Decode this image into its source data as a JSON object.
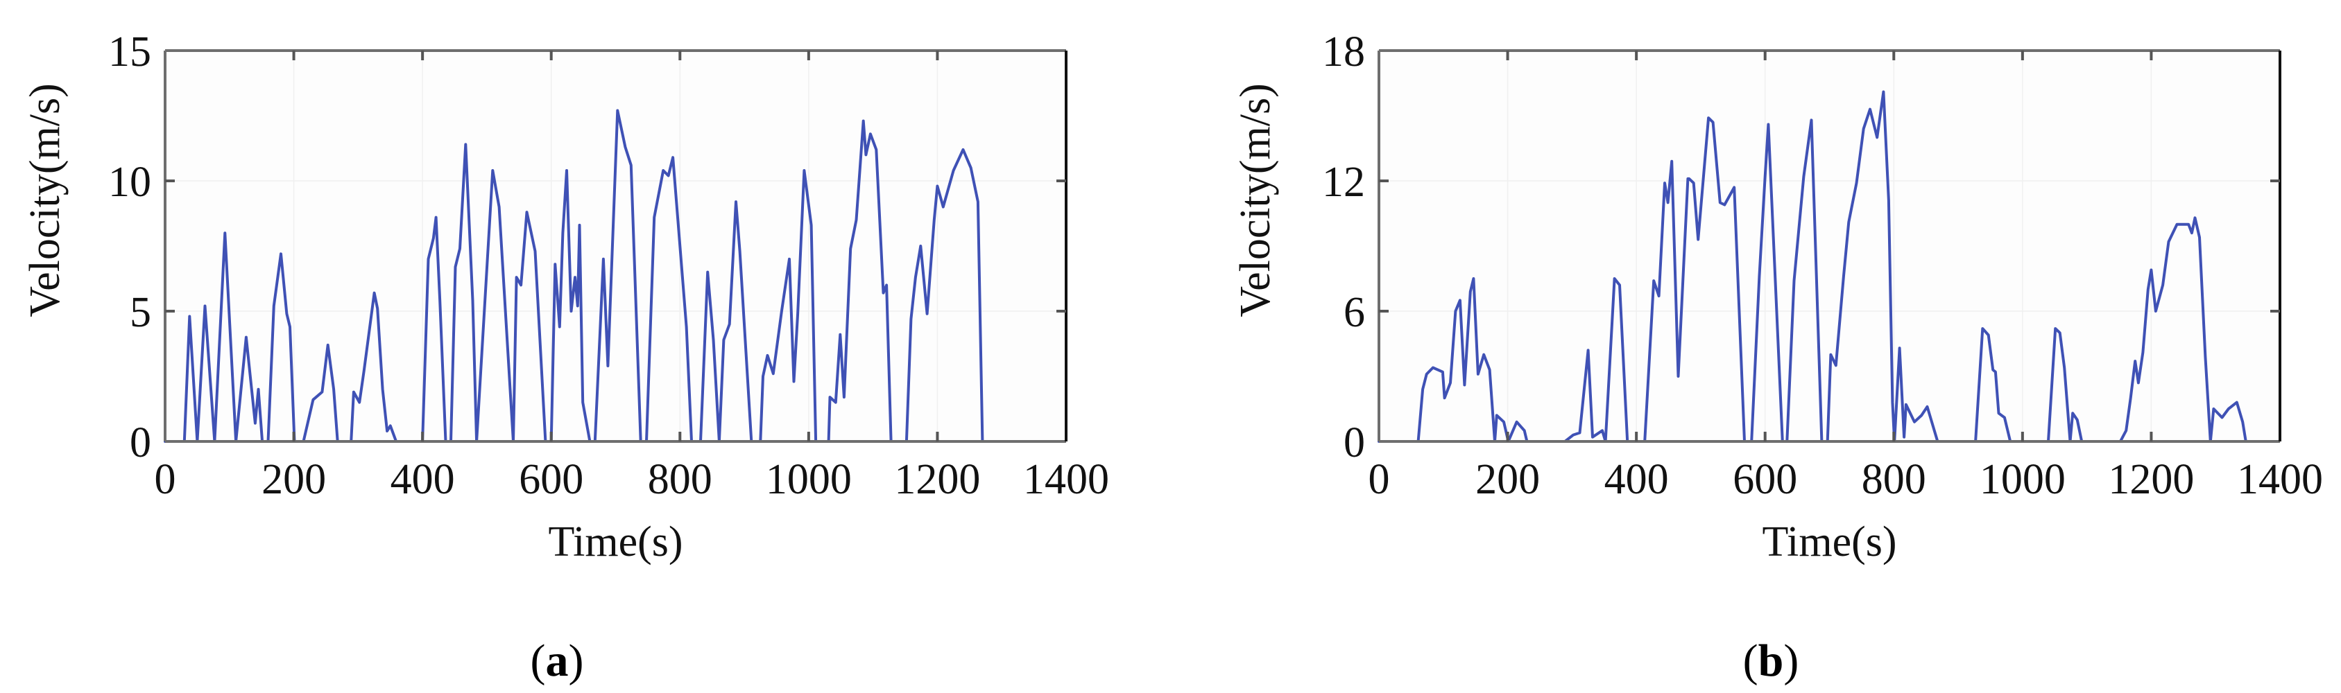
{
  "figure": {
    "line_color": "#3f51b5",
    "panels": [
      {
        "id": "a",
        "caption_letter": "a"
      },
      {
        "id": "b",
        "caption_letter": "b"
      }
    ]
  },
  "chart_data": [
    {
      "type": "line",
      "panel": "a",
      "caption": "(a)",
      "title": "",
      "xlabel": "Time(s)",
      "ylabel": "Velocity(m/s)",
      "xlim": [
        0,
        1400
      ],
      "ylim": [
        0,
        15
      ],
      "xticks": [
        0,
        200,
        400,
        600,
        800,
        1000,
        1200,
        1400
      ],
      "yticks": [
        0,
        5,
        10,
        15
      ],
      "grid": true,
      "legend": null,
      "series": [
        {
          "name": "Velocity",
          "color": "#3f51b5",
          "x": [
            0,
            30,
            38,
            50,
            62,
            77,
            93,
            110,
            126,
            140,
            145,
            151,
            160,
            169,
            180,
            189,
            194,
            201,
            215,
            230,
            244,
            253,
            262,
            268,
            289,
            293,
            302,
            309,
            325,
            330,
            338,
            345,
            350,
            359,
            400,
            409,
            417,
            421,
            427,
            436,
            444,
            451,
            458,
            467,
            478,
            484,
            509,
            519,
            541,
            546,
            553,
            562,
            575,
            591,
            600,
            606,
            613,
            618,
            624,
            631,
            637,
            641,
            644,
            649,
            660,
            668,
            681,
            688,
            703,
            715,
            724,
            739,
            748,
            760,
            774,
            782,
            789,
            810,
            818,
            832,
            843,
            852,
            861,
            868,
            877,
            887,
            893,
            911,
            925,
            929,
            936,
            945,
            958,
            970,
            977,
            983,
            993,
            1004,
            1011,
            1031,
            1033,
            1042,
            1049,
            1055,
            1065,
            1074,
            1085,
            1089,
            1096,
            1105,
            1116,
            1121,
            1128,
            1152,
            1159,
            1166,
            1174,
            1184,
            1195,
            1200,
            1209,
            1225,
            1240,
            1252,
            1263,
            1270,
            1310
          ],
          "y": [
            0,
            0,
            4.8,
            0,
            5.2,
            0,
            8.0,
            0,
            4.0,
            0.7,
            2.0,
            0,
            0,
            5.2,
            7.2,
            4.9,
            4.4,
            0,
            0,
            1.6,
            1.9,
            3.7,
            2.0,
            0,
            0,
            1.9,
            1.5,
            2.7,
            5.7,
            5.1,
            2.0,
            0.4,
            0.6,
            0,
            0,
            7.0,
            7.8,
            8.6,
            5.4,
            0,
            0,
            6.7,
            7.4,
            11.4,
            5.4,
            0,
            10.4,
            9.0,
            0,
            6.3,
            6.0,
            8.8,
            7.3,
            0,
            0,
            6.8,
            4.4,
            8.0,
            10.4,
            5.0,
            6.3,
            5.2,
            8.3,
            1.5,
            0,
            0,
            7.0,
            2.9,
            12.7,
            11.3,
            10.6,
            0,
            0,
            8.6,
            10.4,
            10.2,
            10.9,
            4.4,
            0,
            0,
            6.5,
            3.9,
            0,
            3.9,
            4.5,
            9.2,
            7.3,
            0,
            0,
            2.5,
            3.3,
            2.6,
            5.0,
            7.0,
            2.3,
            4.9,
            10.4,
            8.3,
            0,
            0,
            1.7,
            1.5,
            4.1,
            1.7,
            7.4,
            8.5,
            12.3,
            11.0,
            11.8,
            11.2,
            5.7,
            6.0,
            0,
            0,
            4.7,
            6.3,
            7.5,
            4.9,
            8.5,
            9.8,
            9.0,
            10.4,
            11.2,
            10.5,
            9.2,
            0,
            0
          ]
        }
      ]
    },
    {
      "type": "line",
      "panel": "b",
      "caption": "(b)",
      "title": "",
      "xlabel": "Time(s)",
      "ylabel": "Velocity(m/s)",
      "xlim": [
        0,
        1400
      ],
      "ylim": [
        0,
        18
      ],
      "xticks": [
        0,
        200,
        400,
        600,
        800,
        1000,
        1200,
        1400
      ],
      "yticks": [
        0,
        6,
        12,
        18
      ],
      "grid": true,
      "legend": null,
      "series": [
        {
          "name": "Velocity",
          "color": "#3f51b5",
          "x": [
            0,
            61,
            68,
            74,
            84,
            99,
            102,
            111,
            119,
            126,
            133,
            142,
            147,
            154,
            163,
            172,
            180,
            183,
            194,
            201,
            214,
            226,
            230,
            289,
            302,
            312,
            325,
            332,
            347,
            352,
            366,
            374,
            386,
            413,
            427,
            435,
            444,
            449,
            455,
            465,
            480,
            482,
            489,
            496,
            512,
            519,
            530,
            537,
            552,
            568,
            579,
            591,
            600,
            605,
            627,
            634,
            645,
            660,
            672,
            688,
            697,
            702,
            710,
            722,
            730,
            742,
            753,
            763,
            774,
            784,
            792,
            798,
            801,
            809,
            816,
            819,
            832,
            843,
            852,
            868,
            927,
            938,
            947,
            954,
            958,
            963,
            972,
            981,
            1040,
            1051,
            1058,
            1065,
            1074,
            1078,
            1085,
            1092,
            1152,
            1161,
            1168,
            1175,
            1180,
            1187,
            1195,
            1200,
            1207,
            1218,
            1227,
            1240,
            1258,
            1263,
            1268,
            1275,
            1284,
            1292,
            1297,
            1310,
            1320,
            1333,
            1342,
            1347,
            1396
          ],
          "y": [
            0,
            0,
            2.4,
            3.1,
            3.4,
            3.2,
            2.0,
            2.7,
            6.0,
            6.5,
            2.6,
            6.9,
            7.5,
            3.1,
            4.0,
            3.3,
            0,
            1.2,
            0.9,
            0,
            0.9,
            0.5,
            0,
            0,
            0.3,
            0.4,
            4.2,
            0.2,
            0.5,
            0,
            7.5,
            7.2,
            0,
            0,
            7.4,
            6.7,
            11.9,
            11.0,
            12.9,
            3.0,
            12.1,
            12.1,
            11.9,
            9.3,
            14.9,
            14.7,
            11.0,
            10.9,
            11.7,
            0,
            0,
            7.6,
            12.2,
            14.6,
            0,
            0,
            7.4,
            12.2,
            14.8,
            0,
            0,
            4.0,
            3.5,
            7.6,
            10.1,
            11.9,
            14.4,
            15.3,
            14.0,
            16.1,
            11.1,
            1.8,
            0,
            4.3,
            0.2,
            1.7,
            0.9,
            1.2,
            1.6,
            0,
            0,
            5.2,
            4.9,
            3.3,
            3.2,
            1.3,
            1.1,
            0,
            0,
            5.2,
            5.0,
            3.4,
            0,
            1.3,
            1.0,
            0,
            0,
            0.5,
            2.0,
            3.7,
            2.7,
            4.1,
            7.0,
            7.9,
            6.0,
            7.2,
            9.2,
            10.0,
            10.0,
            9.6,
            10.3,
            9.4,
            3.9,
            0,
            1.5,
            1.1,
            1.5,
            1.8,
            0.9,
            0,
            0
          ]
        }
      ]
    }
  ]
}
